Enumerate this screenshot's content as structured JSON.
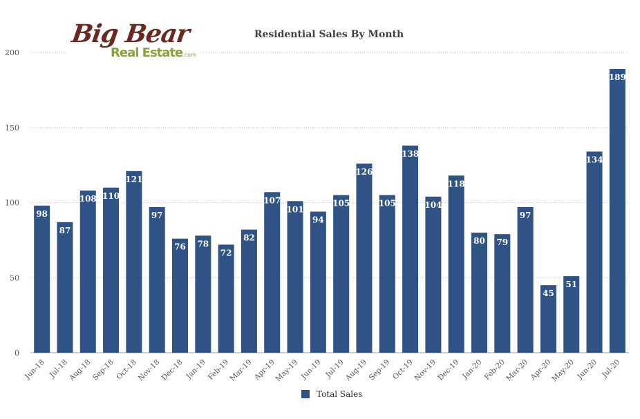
{
  "logo": {
    "line1": "Big Bear",
    "line2": "Real Estate",
    "suffix": ".com"
  },
  "colors": {
    "bar": "#2f5385",
    "grid": "#c8c8c8",
    "axis_text": "#555555",
    "label_text": "#ffffff"
  },
  "chart_data": {
    "type": "bar",
    "title": "Residential Sales By Month",
    "xlabel": "",
    "ylabel": "",
    "ylim": [
      0,
      200
    ],
    "yticks": [
      0,
      50,
      100,
      150,
      200
    ],
    "grid": true,
    "legend_position": "bottom",
    "categories": [
      "Jun-18",
      "Jul-18",
      "Aug-18",
      "Sep-18",
      "Oct-18",
      "Nov-18",
      "Dec-18",
      "Jan-19",
      "Feb-19",
      "Mar-19",
      "Apr-19",
      "May-19",
      "Jun-19",
      "Jul-19",
      "Aug-19",
      "Sep-19",
      "Oct-19",
      "Nov-19",
      "Dec-19",
      "Jan-20",
      "Feb-20",
      "Mar-20",
      "Apr-20",
      "May-20",
      "Jun-20",
      "Jul-20"
    ],
    "series": [
      {
        "name": "Total Sales",
        "values": [
          98,
          87,
          108,
          110,
          121,
          97,
          76,
          78,
          72,
          82,
          107,
          101,
          94,
          105,
          126,
          105,
          138,
          104,
          118,
          80,
          79,
          97,
          45,
          51,
          134,
          189
        ]
      }
    ]
  }
}
